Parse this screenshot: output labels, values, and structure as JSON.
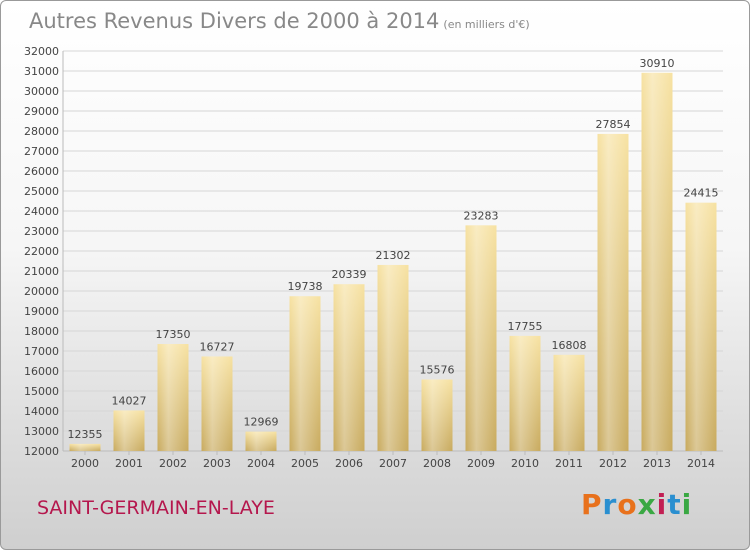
{
  "header": {
    "title": "Autres Revenus Divers de 2000 à 2014",
    "subtitle": "(en milliers d'€)"
  },
  "footer": {
    "commune": "SAINT-GERMAIN-EN-LAYE",
    "logo_letters": [
      "P",
      "r",
      "o",
      "x",
      "i",
      "t",
      "i"
    ]
  },
  "colors": {
    "logo": [
      "#e8711c",
      "#2a8fd0",
      "#e8711c",
      "#3aa843",
      "#c21f53",
      "#2a8fd0",
      "#3aa843"
    ],
    "bar_light": "#f7e2a2",
    "bar_dark": "#c8aa5e"
  },
  "chart_data": {
    "type": "bar",
    "categories": [
      "2000",
      "2001",
      "2002",
      "2003",
      "2004",
      "2005",
      "2006",
      "2007",
      "2008",
      "2009",
      "2010",
      "2011",
      "2012",
      "2013",
      "2014"
    ],
    "values": [
      12355,
      14027,
      17350,
      16727,
      12969,
      19738,
      20339,
      21302,
      15576,
      23283,
      17755,
      16808,
      27854,
      30910,
      24415
    ],
    "ylim": [
      12000,
      32000
    ],
    "ytick_step": 1000,
    "grid": true,
    "title": "Autres Revenus Divers de 2000 à 2014",
    "xlabel": "",
    "ylabel": ""
  }
}
